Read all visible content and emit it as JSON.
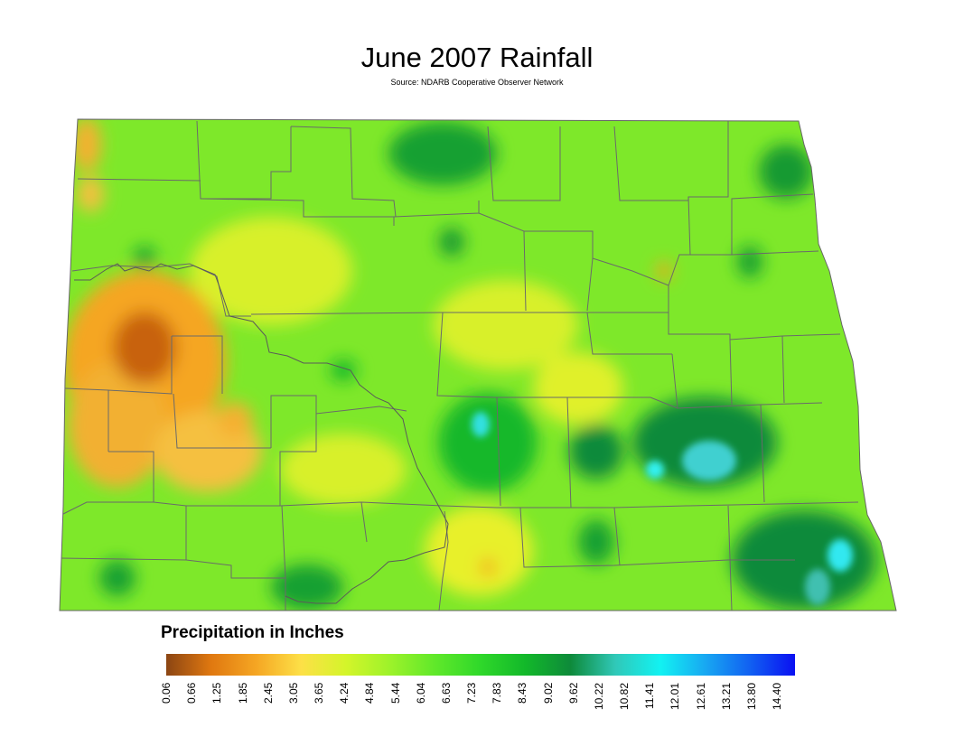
{
  "title": "June 2007 Rainfall",
  "subtitle": "Source: NDARB Cooperative Observer Network",
  "legend": {
    "title": "Precipitation in Inches",
    "ticks": [
      "0.06",
      "0.66",
      "1.25",
      "1.85",
      "2.45",
      "3.05",
      "3.65",
      "4.24",
      "4.84",
      "5.44",
      "6.04",
      "6.63",
      "7.23",
      "7.83",
      "8.43",
      "9.02",
      "9.62",
      "10.22",
      "10.82",
      "11.41",
      "12.01",
      "12.61",
      "13.21",
      "13.80",
      "14.40"
    ],
    "colors": [
      "#8b4513",
      "#e07810",
      "#f5a623",
      "#fde047",
      "#d4f52a",
      "#9cf22a",
      "#5fe82a",
      "#2fd82a",
      "#12b82a",
      "#0e8a3a",
      "#30c8b8",
      "#12f2f2",
      "#18a8f2",
      "#1160f2",
      "#0a10f2"
    ]
  },
  "map": {
    "base_color": "#7ee82a",
    "outline_color": "#666666"
  }
}
